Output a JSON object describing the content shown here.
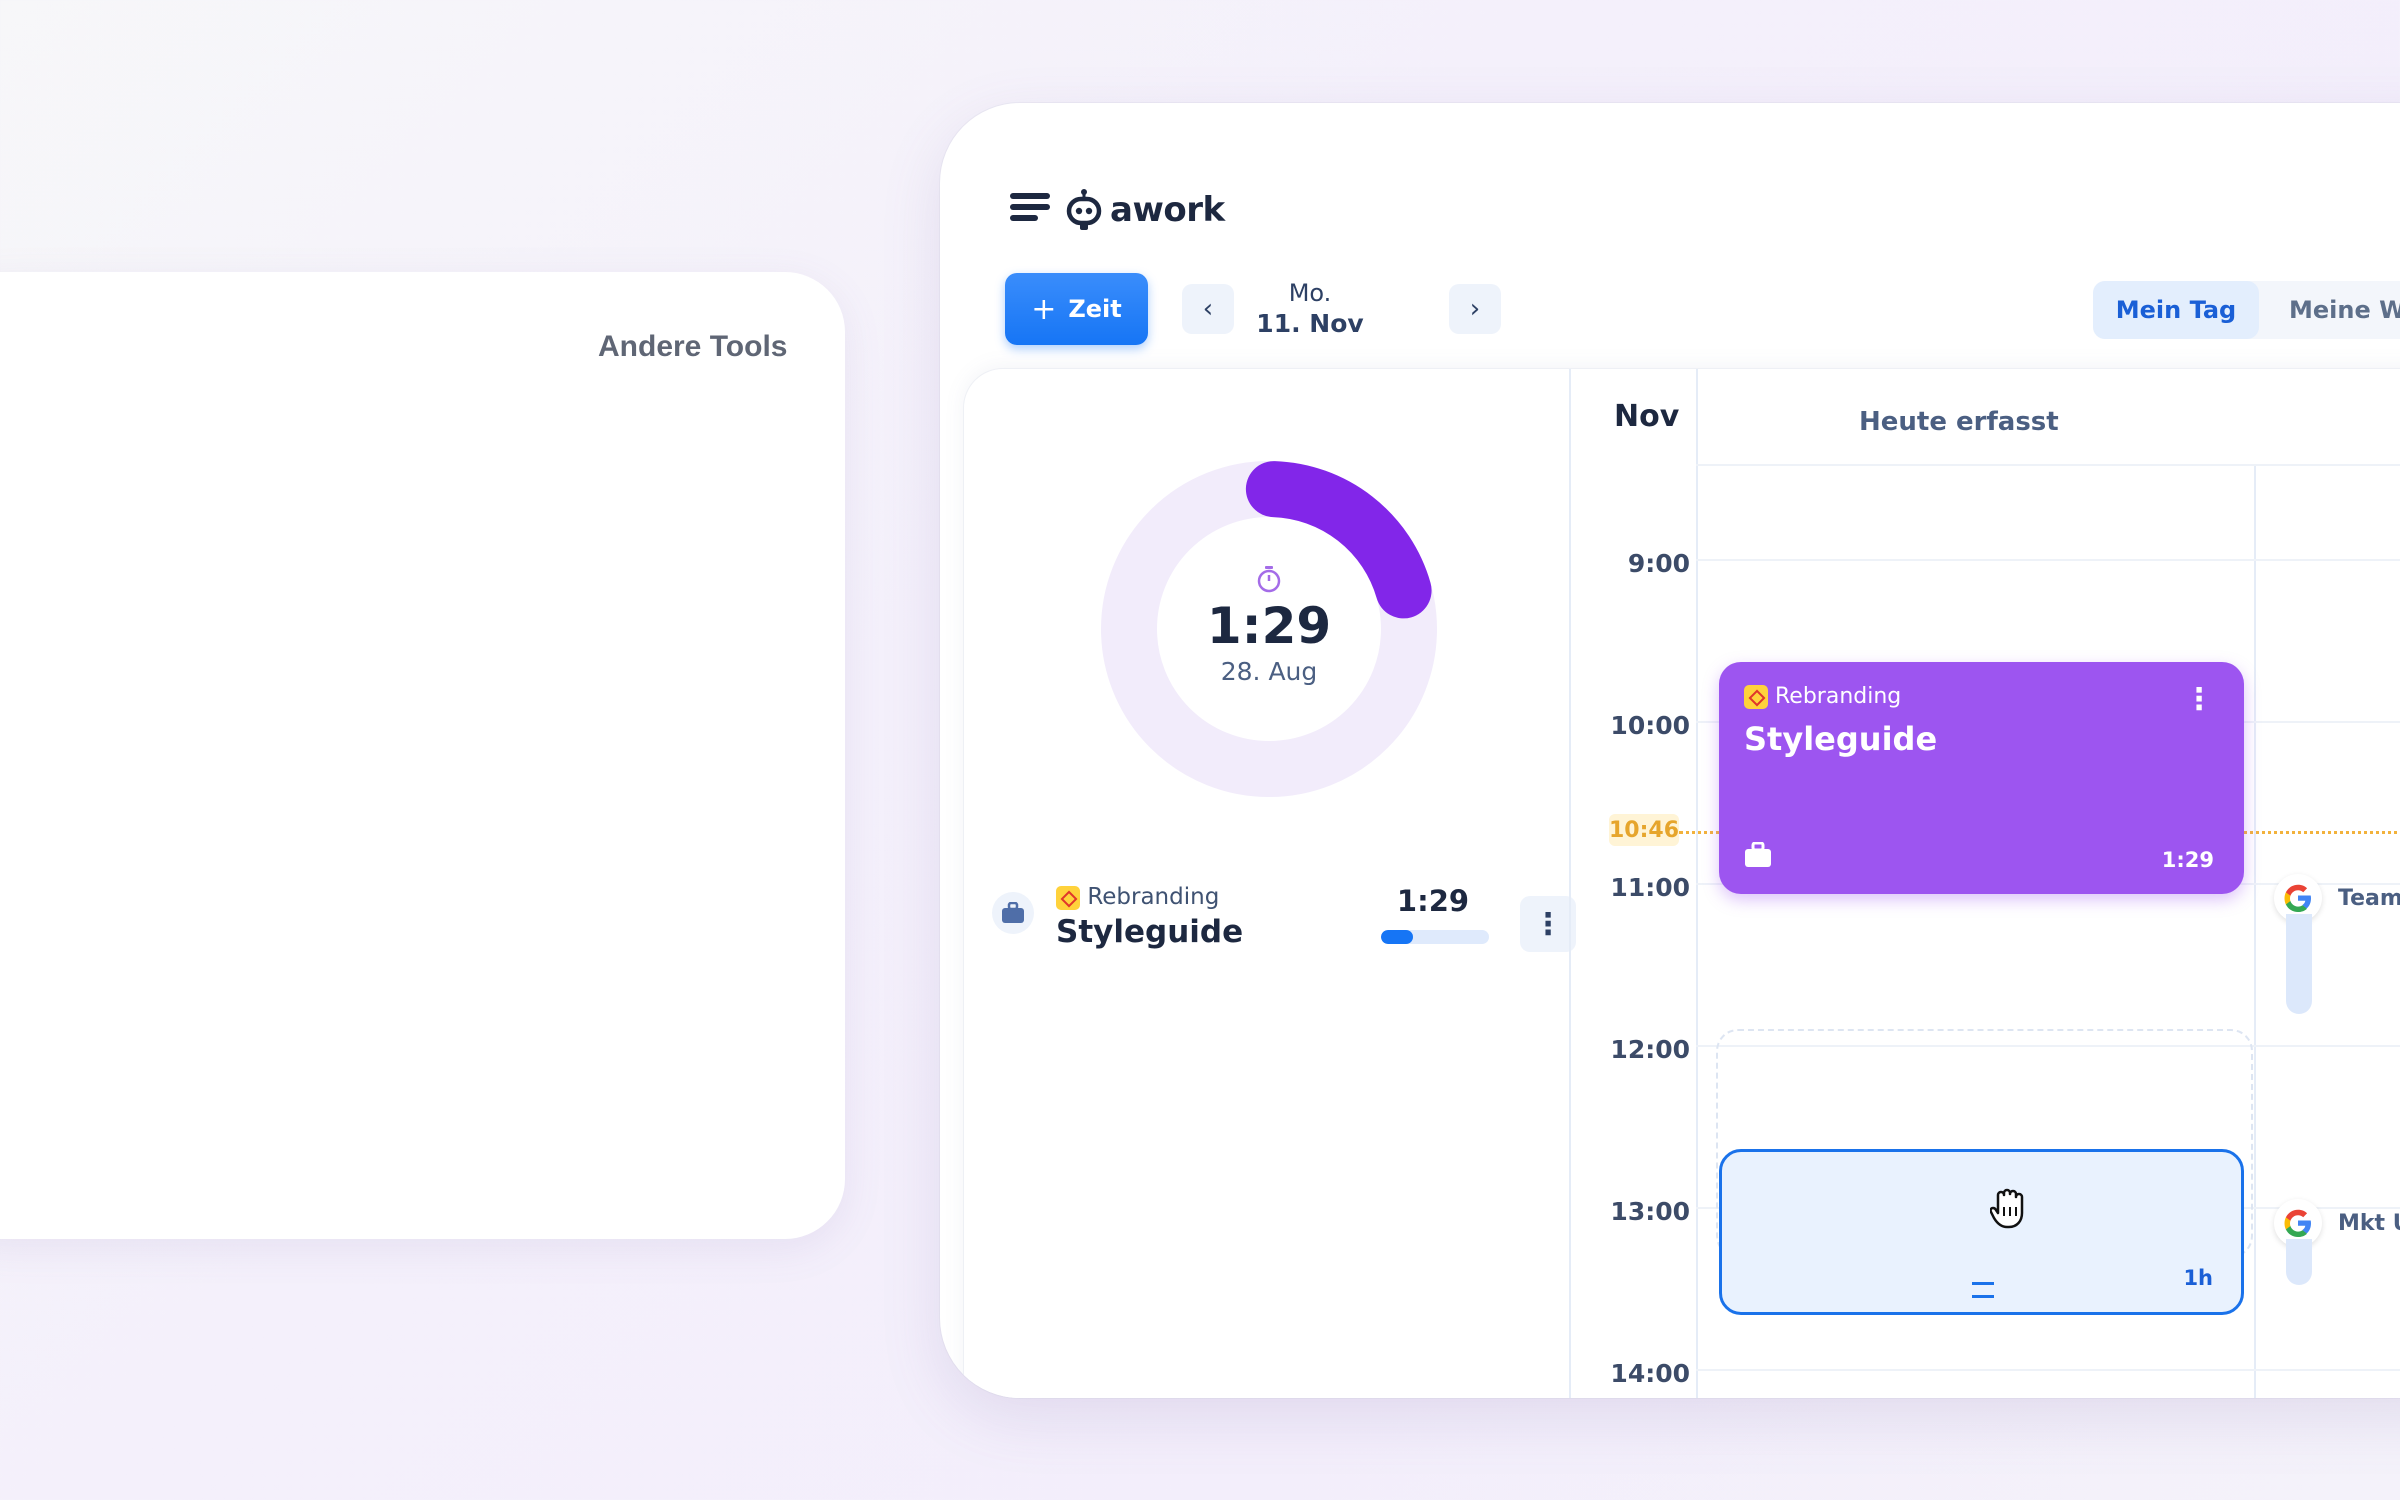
{
  "other_card": {
    "title": "Andere Tools"
  },
  "app": {
    "logo": "awork",
    "toolbar": {
      "add_time_label": "Zeit",
      "date_dow": "Mo.",
      "date_day": "11. Nov",
      "views": [
        "Mein Tag",
        "Meine Wo"
      ],
      "active_view": "Mein Tag"
    },
    "timer": {
      "value": "1:29",
      "date": "28. Aug",
      "progress_fraction": 0.2
    },
    "tracking": {
      "project": "Rebranding",
      "task": "Styleguide",
      "time": "1:29",
      "progress_fraction": 0.3
    },
    "calendar": {
      "month": "Nov",
      "column_header": "Heute erfasst",
      "hours": [
        "9:00",
        "10:00",
        "11:00",
        "12:00",
        "13:00",
        "14:00"
      ],
      "now_label": "10:46",
      "event": {
        "project": "Rebranding",
        "title": "Styleguide",
        "duration": "1:29"
      },
      "new_event": {
        "duration": "1h"
      },
      "google_events": [
        "Team-",
        "Mkt Up"
      ]
    },
    "colors": {
      "accent": "#1675f5",
      "event_purple": "#9d55f0",
      "timer_arc": "#8226e9",
      "now_line": "#f2b23c"
    }
  }
}
